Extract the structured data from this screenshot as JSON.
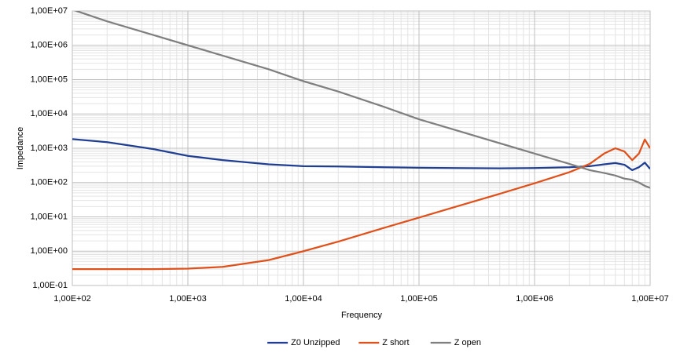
{
  "chart_data": {
    "type": "line",
    "x_label": "Frequency",
    "y_label": "Impedance",
    "log_x": true,
    "log_y": true,
    "grid": true,
    "minor_grid": true,
    "legend": "bottom",
    "xlim": [
      100,
      10000000
    ],
    "xticks": [
      {
        "value": 100,
        "label": "1,00E+02"
      },
      {
        "value": 1000,
        "label": "1,00E+03"
      },
      {
        "value": 10000,
        "label": "1,00E+04"
      },
      {
        "value": 100000,
        "label": "1,00E+05"
      },
      {
        "value": 1000000,
        "label": "1,00E+06"
      },
      {
        "value": 10000000,
        "label": "1,00E+07"
      }
    ],
    "ylim": [
      0.1,
      10000000
    ],
    "yticks": [
      {
        "value": 0.1,
        "label": "1,00E-01"
      },
      {
        "value": 1,
        "label": "1,00E+00"
      },
      {
        "value": 10,
        "label": "1,00E+01"
      },
      {
        "value": 100,
        "label": "1,00E+02"
      },
      {
        "value": 1000,
        "label": "1,00E+03"
      },
      {
        "value": 10000,
        "label": "1,00E+04"
      },
      {
        "value": 100000,
        "label": "1,00E+05"
      },
      {
        "value": 1000000,
        "label": "1,00E+06"
      },
      {
        "value": 10000000,
        "label": "1,00E+07"
      }
    ],
    "x": [
      100,
      200,
      500,
      1000,
      2000,
      5000,
      10000,
      20000,
      50000,
      100000,
      200000,
      500000,
      1000000,
      2000000,
      3000000,
      4000000,
      5000000,
      6000000,
      7000000,
      8000000,
      9000000,
      10000000
    ],
    "series": [
      {
        "name": "Z0 Unzipped",
        "color": "#203f93",
        "values": [
          1850,
          1500,
          950,
          600,
          450,
          340,
          300,
          295,
          280,
          270,
          265,
          260,
          265,
          280,
          300,
          340,
          370,
          330,
          230,
          280,
          380,
          250
        ]
      },
      {
        "name": "Z short",
        "color": "#e0501a",
        "values": [
          0.3,
          0.3,
          0.3,
          0.31,
          0.35,
          0.55,
          1.0,
          1.9,
          4.8,
          9.5,
          19,
          47,
          95,
          200,
          350,
          700,
          1000,
          800,
          450,
          700,
          1800,
          1000
        ]
      },
      {
        "name": "Z open",
        "color": "#7f7f7f",
        "values": [
          11000000,
          5000000,
          2000000,
          1000000,
          500000,
          200000,
          90000,
          45000,
          16000,
          7000,
          3500,
          1400,
          700,
          350,
          230,
          190,
          160,
          130,
          120,
          100,
          80,
          70
        ]
      }
    ]
  }
}
